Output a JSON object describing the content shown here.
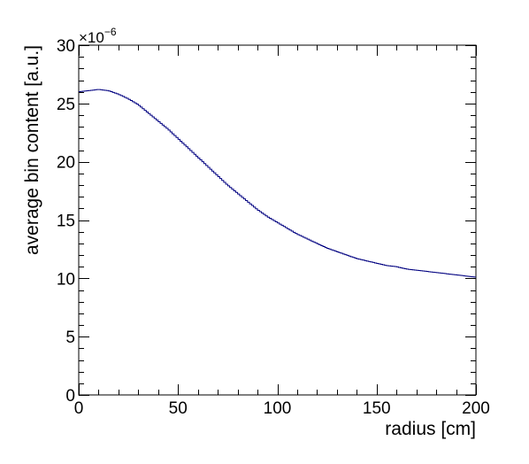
{
  "chart_data": {
    "type": "line",
    "style": "step-histogram",
    "title": "",
    "xlabel": "radius [cm]",
    "ylabel": "average bin content [a.u.]",
    "y_exponent_base": "×10",
    "y_exponent_power": "−6",
    "xlim": [
      0,
      200
    ],
    "ylim": [
      0,
      30
    ],
    "x_ticks": [
      "0",
      "50",
      "100",
      "150",
      "200"
    ],
    "y_ticks": [
      "0",
      "5",
      "10",
      "15",
      "20",
      "25",
      "30"
    ],
    "grid": false,
    "legend": "none",
    "line_color": "#000080",
    "series": [
      {
        "x": [
          0,
          5,
          10,
          15,
          20,
          25,
          30,
          35,
          40,
          45,
          50,
          55,
          60,
          65,
          70,
          75,
          80,
          85,
          90,
          95,
          100,
          105,
          110,
          115,
          120,
          125,
          130,
          135,
          140,
          145,
          150,
          155,
          160,
          165,
          170,
          175,
          180,
          185,
          190,
          195,
          200
        ],
        "values": [
          26.0,
          26.1,
          26.2,
          26.1,
          25.8,
          25.4,
          24.9,
          24.2,
          23.5,
          22.8,
          22.0,
          21.2,
          20.4,
          19.6,
          18.8,
          18.0,
          17.3,
          16.6,
          15.9,
          15.3,
          14.8,
          14.3,
          13.8,
          13.4,
          13.0,
          12.6,
          12.3,
          12.0,
          11.7,
          11.5,
          11.3,
          11.1,
          11.0,
          10.8,
          10.7,
          10.6,
          10.5,
          10.4,
          10.3,
          10.2,
          10.1
        ]
      }
    ]
  }
}
